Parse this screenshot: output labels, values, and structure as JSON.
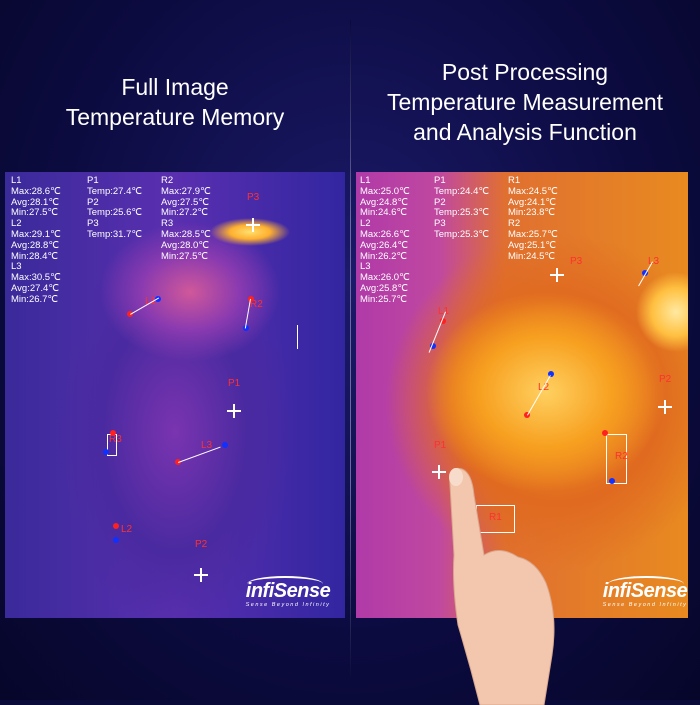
{
  "left": {
    "title_line1": "Full Image",
    "title_line2": "Temperature Memory",
    "readouts": {
      "col1": "L1\nMax:28.6℃\nAvg:28.1℃\nMin:27.5℃\nL2\nMax:29.1℃\nAvg:28.8℃\nMin:28.4℃\nL3\nMax:30.5℃\nAvg:27.4℃\nMin:26.7℃",
      "col2": "P1\nTemp:27.4℃\nP2\nTemp:25.6℃\nP3\nTemp:31.7℃",
      "col3": "R2\nMax:27.9℃\nAvg:27.5℃\nMin:27.2℃\nR3\nMax:28.5℃\nAvg:28.0℃\nMin:27.5℃"
    },
    "markers": {
      "l1": "L1",
      "l2": "L2",
      "l3": "L3",
      "p1": "P1",
      "p2": "P2",
      "p3": "P3",
      "r2": "R2",
      "r3": "R3"
    }
  },
  "right": {
    "title_line1": "Post Processing",
    "title_line2": "Temperature Measurement",
    "title_line3": "and Analysis Function",
    "readouts": {
      "col1": "L1\nMax:25.0℃\nAvg:24.8℃\nMin:24.6℃\nL2\nMax:26.6℃\nAvg:26.4℃\nMin:26.2℃\nL3\nMax:26.0℃\nAvg:25.8℃\nMin:25.7℃",
      "col2": "P1\nTemp:24.4℃\nP2\nTemp:25.3℃\nP3\nTemp:25.3℃",
      "col3": "R1\nMax:24.5℃\nAvg:24.1℃\nMin:23.8℃\nR2\nMax:25.7℃\nAvg:25.1℃\nMin:24.5℃"
    },
    "markers": {
      "l1": "L1",
      "l2": "L2",
      "l3": "L3",
      "p1": "P1",
      "p2": "P2",
      "p3": "P3",
      "r1": "R1",
      "r2": "R2"
    }
  },
  "logo": {
    "brand": "infiSense",
    "tagline": "Sense  Beyond  Infinity"
  },
  "colors": {
    "marker_label": "#ff3030",
    "min_dot": "#1030ff",
    "max_dot": "#ff2020"
  }
}
